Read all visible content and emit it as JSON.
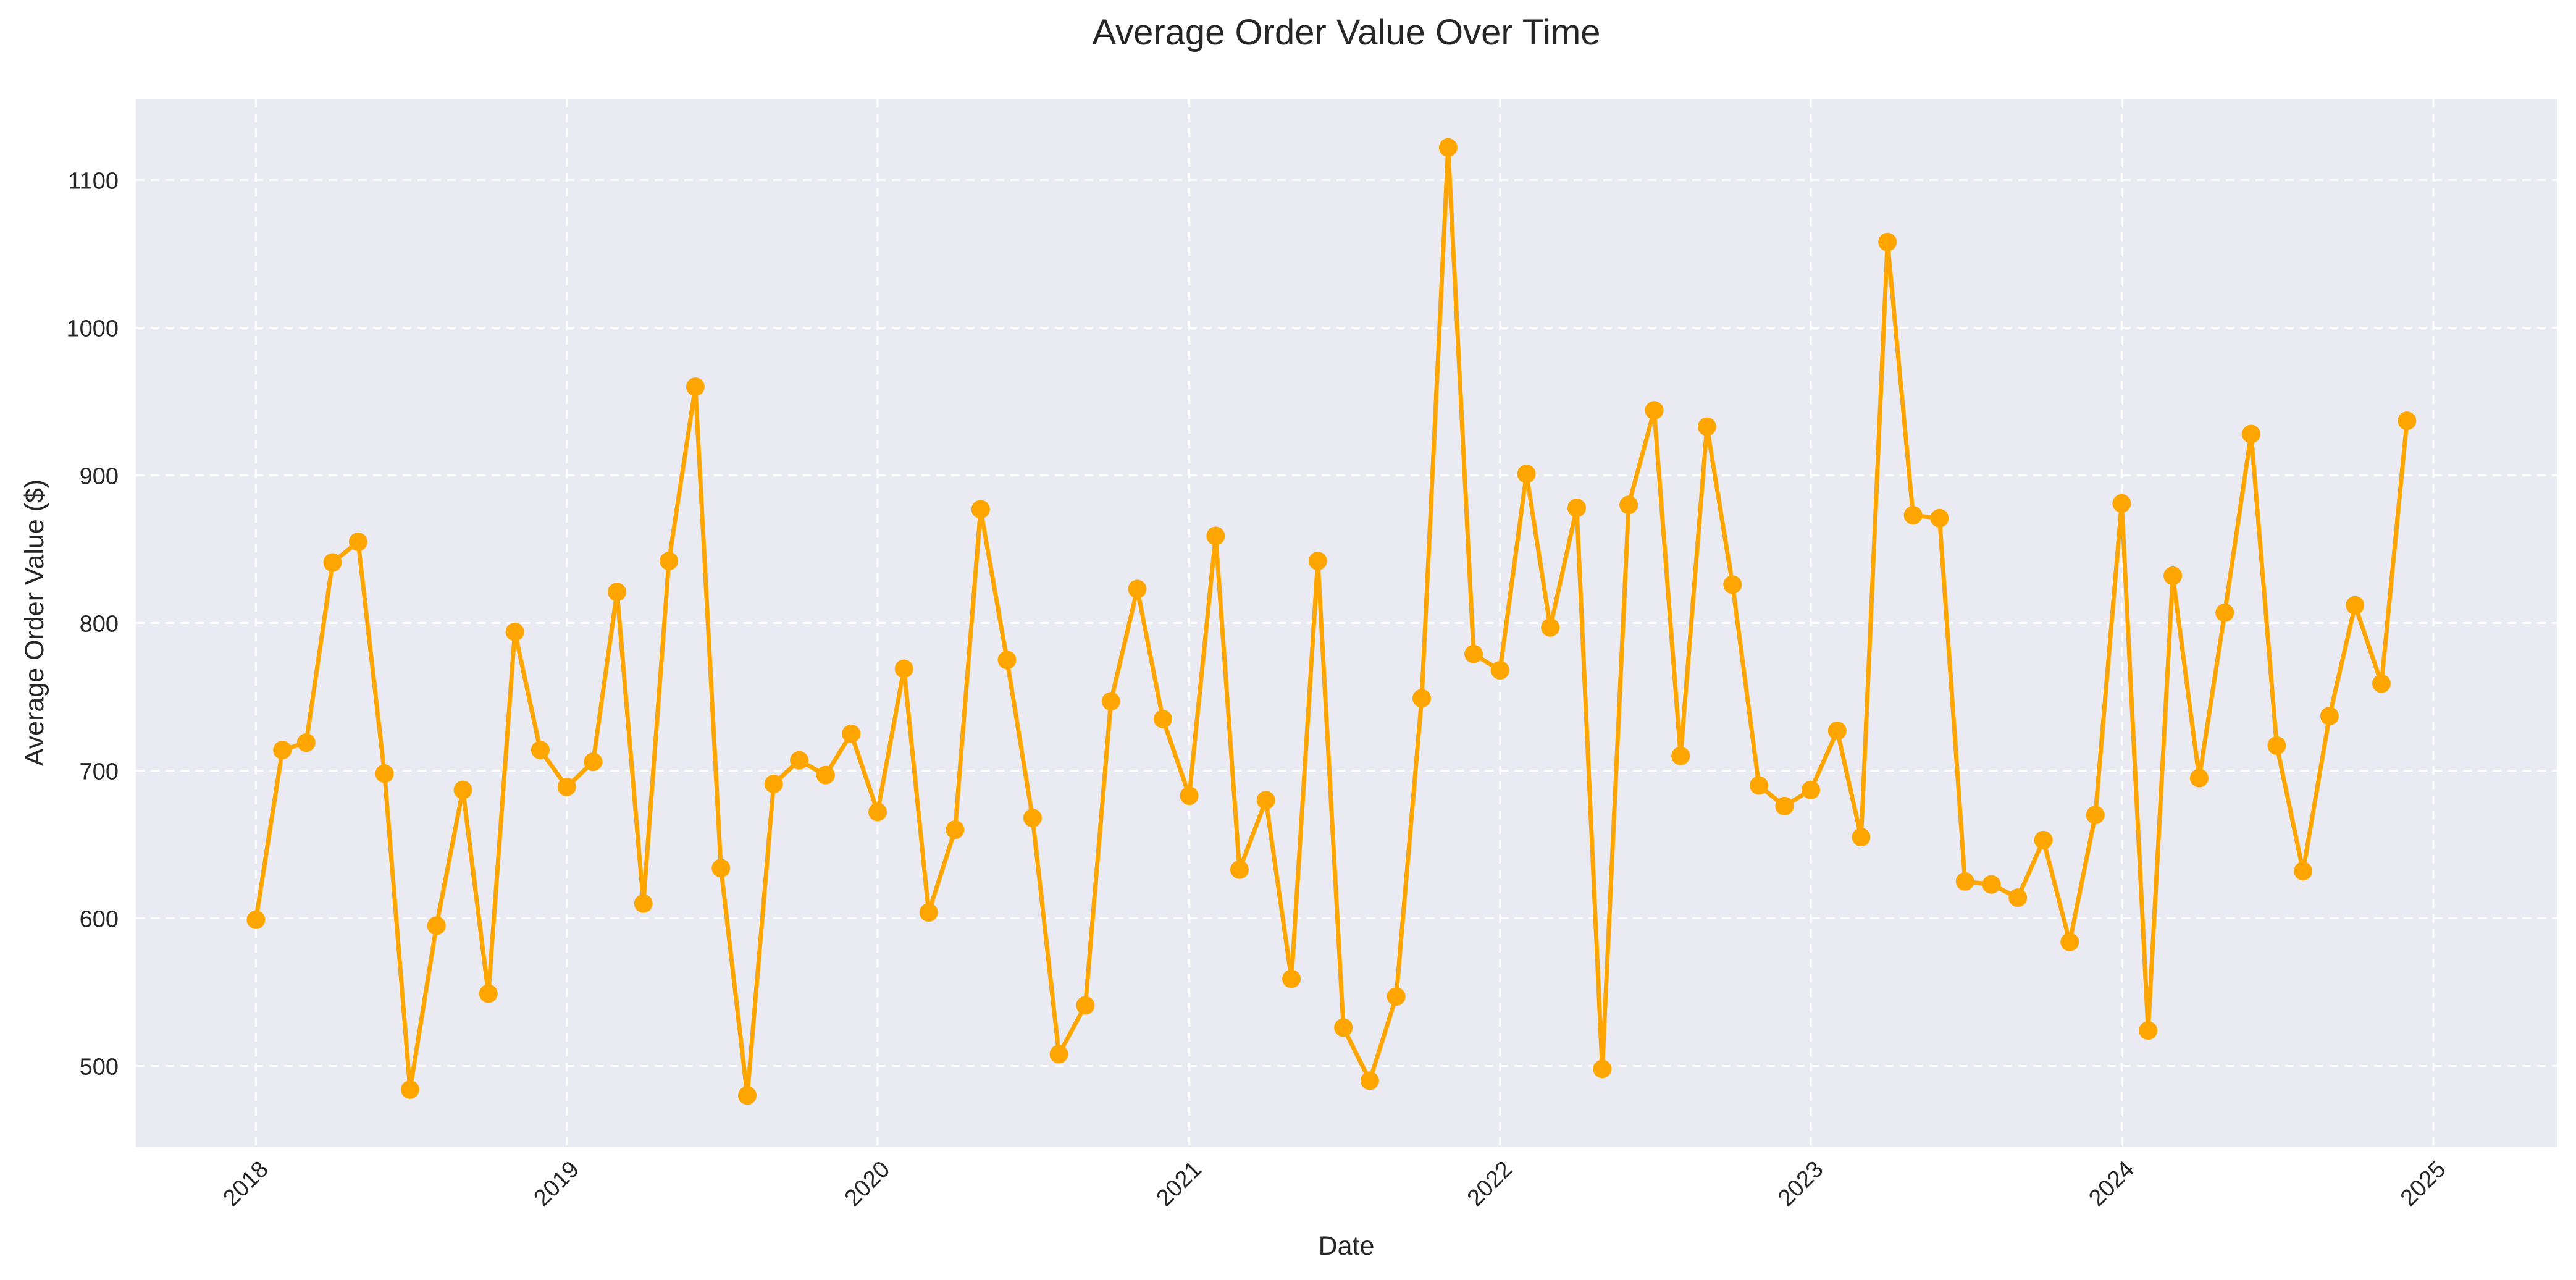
{
  "chart_data": {
    "type": "line",
    "title": "Average Order Value Over Time",
    "xlabel": "Date",
    "ylabel": "Average Order Value ($)",
    "x_ticks": [
      "2018",
      "2019",
      "2020",
      "2021",
      "2022",
      "2023",
      "2024",
      "2025"
    ],
    "y_ticks": [
      500,
      600,
      700,
      800,
      900,
      1000,
      1100
    ],
    "ylim": [
      445,
      1155
    ],
    "xlim": [
      "2017-08-13",
      "2025-05-26"
    ],
    "grid": true,
    "legend": "none",
    "x_label_rotation_deg": 45,
    "colors": {
      "line": "#ffa500",
      "background": "#eaeaf2",
      "grid": "#ffffff",
      "text": "#262626"
    },
    "series": [
      {
        "x": [
          "2018-01",
          "2018-02",
          "2018-03",
          "2018-04",
          "2018-05",
          "2018-06",
          "2018-07",
          "2018-08",
          "2018-09",
          "2018-10",
          "2018-11",
          "2018-12",
          "2019-01",
          "2019-02",
          "2019-03",
          "2019-04",
          "2019-05",
          "2019-06",
          "2019-07",
          "2019-08",
          "2019-09",
          "2019-10",
          "2019-11",
          "2019-12",
          "2020-01",
          "2020-02",
          "2020-03",
          "2020-04",
          "2020-05",
          "2020-06",
          "2020-07",
          "2020-08",
          "2020-09",
          "2020-10",
          "2020-11",
          "2020-12",
          "2021-01",
          "2021-02",
          "2021-03",
          "2021-04",
          "2021-05",
          "2021-06",
          "2021-07",
          "2021-08",
          "2021-09",
          "2021-10",
          "2021-11",
          "2021-12",
          "2022-01",
          "2022-02",
          "2022-03",
          "2022-04",
          "2022-05",
          "2022-06",
          "2022-07",
          "2022-08",
          "2022-09",
          "2022-10",
          "2022-11",
          "2022-12",
          "2023-01",
          "2023-02",
          "2023-03",
          "2023-04",
          "2023-05",
          "2023-06",
          "2023-07",
          "2023-08",
          "2023-09",
          "2023-10",
          "2023-11",
          "2023-12",
          "2024-01",
          "2024-02",
          "2024-03",
          "2024-04",
          "2024-05",
          "2024-06",
          "2024-07",
          "2024-08",
          "2024-09",
          "2024-10",
          "2024-11",
          "2024-12"
        ],
        "values": [
          599,
          714,
          719,
          841,
          855,
          698,
          484,
          595,
          687,
          549,
          794,
          714,
          689,
          706,
          821,
          610,
          842,
          960,
          634,
          480,
          691,
          707,
          697,
          725,
          672,
          769,
          604,
          660,
          877,
          775,
          668,
          508,
          541,
          747,
          823,
          735,
          683,
          859,
          633,
          680,
          559,
          842,
          526,
          490,
          547,
          749,
          1122,
          779,
          768,
          901,
          797,
          878,
          498,
          880,
          944,
          710,
          933,
          826,
          690,
          676,
          687,
          727,
          655,
          1058,
          873,
          871,
          625,
          623,
          614,
          653,
          584,
          670,
          881,
          524,
          832,
          695,
          807,
          928,
          717,
          632,
          737,
          812,
          759,
          937
        ]
      }
    ]
  }
}
